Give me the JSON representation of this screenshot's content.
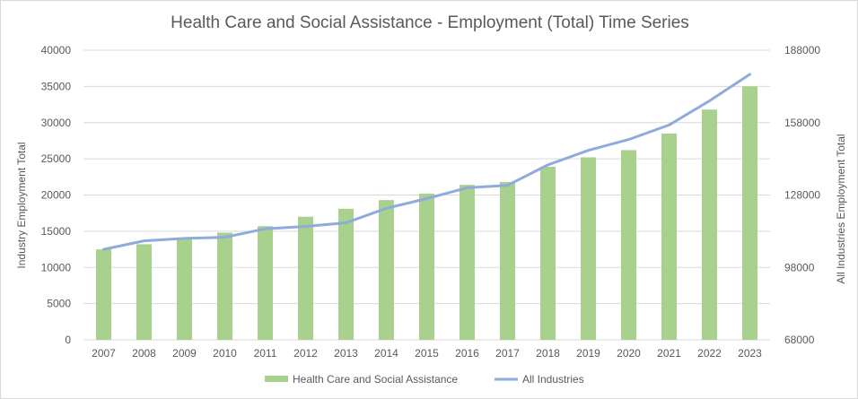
{
  "chart_data": {
    "type": "bar",
    "title": "Health Care and Social Assistance - Employment (Total) Time Series",
    "ylabel_left": "Industry Employment Total",
    "ylabel_right": "All Industries Employment Total",
    "categories": [
      "2007",
      "2008",
      "2009",
      "2010",
      "2011",
      "2012",
      "2013",
      "2014",
      "2015",
      "2016",
      "2017",
      "2018",
      "2019",
      "2020",
      "2021",
      "2022",
      "2023"
    ],
    "ylim_left": [
      0,
      40000
    ],
    "yticks_left": [
      "0",
      "5000",
      "10000",
      "15000",
      "20000",
      "25000",
      "30000",
      "35000",
      "40000"
    ],
    "ylim_right": [
      68000,
      188000
    ],
    "yticks_right": [
      "68000",
      "98000",
      "128000",
      "158000",
      "188000"
    ],
    "grid": true,
    "legend_position": "bottom",
    "series": [
      {
        "name": "Health Care and Social Assistance",
        "type": "bar",
        "axis": "left",
        "color": "#a9d18e",
        "values": [
          12500,
          13200,
          14000,
          14800,
          15700,
          17000,
          18100,
          19300,
          20200,
          21400,
          21800,
          23900,
          25200,
          26200,
          28500,
          31800,
          35000
        ]
      },
      {
        "name": "All Industries",
        "type": "line",
        "axis": "right",
        "color": "#8faadc",
        "values": [
          105500,
          109000,
          110000,
          110500,
          114000,
          115000,
          116500,
          122500,
          126500,
          131000,
          132000,
          140500,
          146500,
          151000,
          157000,
          167000,
          178000
        ]
      }
    ]
  }
}
